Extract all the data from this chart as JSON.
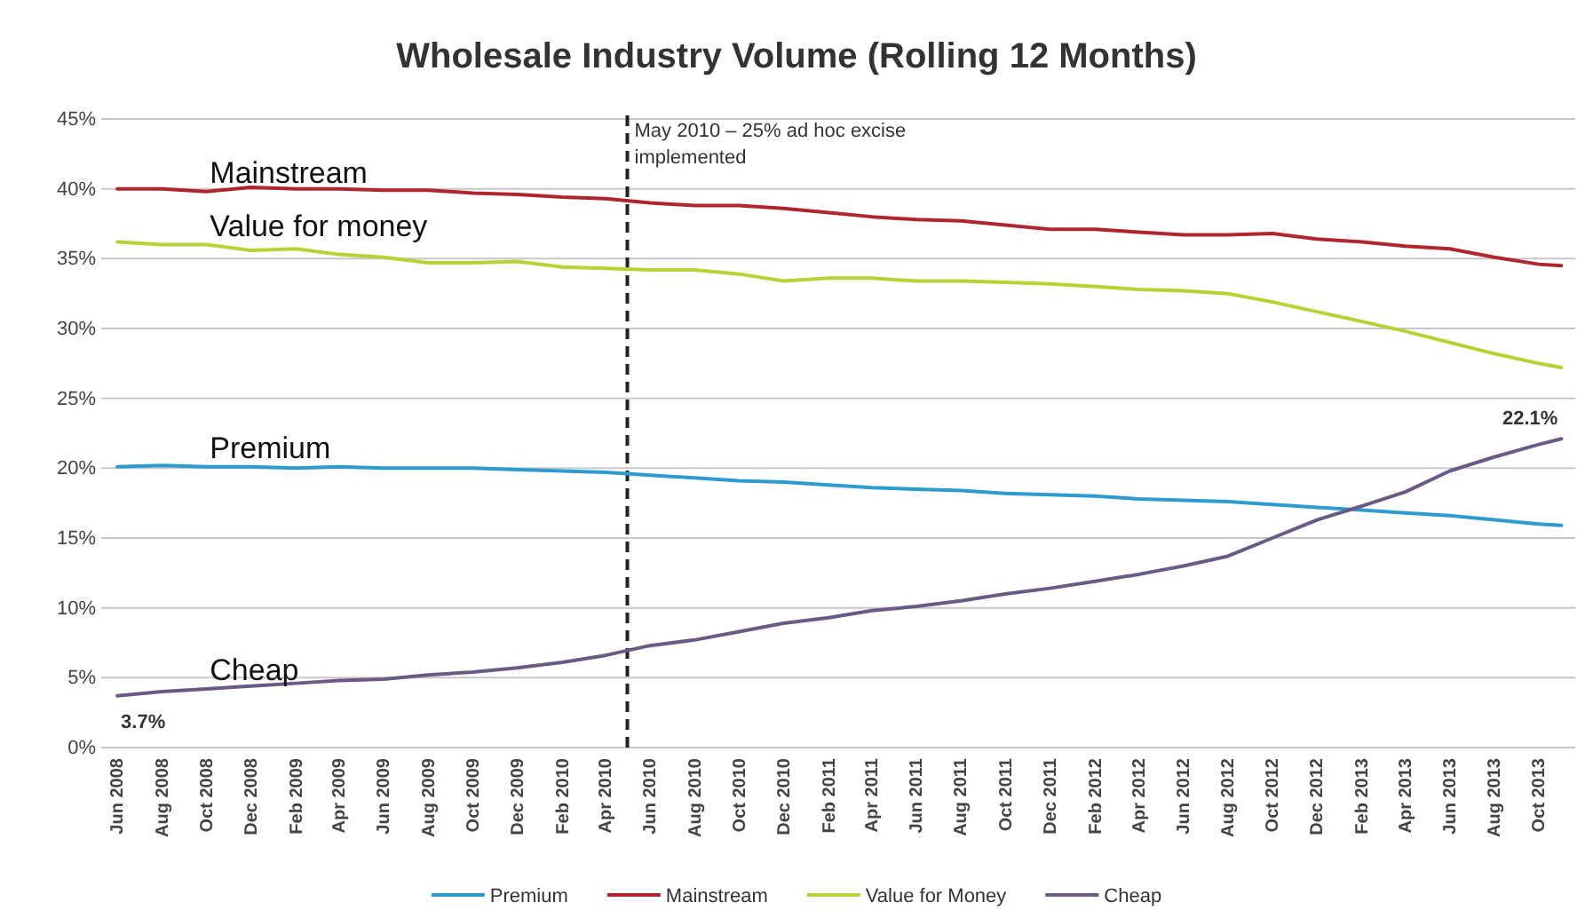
{
  "chart_data": {
    "type": "line",
    "title": "Wholesale Industry Volume (Rolling 12 Months)",
    "x": [
      "2008-06",
      "2008-08",
      "2008-10",
      "2008-12",
      "2009-02",
      "2009-04",
      "2009-06",
      "2009-08",
      "2009-10",
      "2009-12",
      "2010-02",
      "2010-04",
      "2010-06",
      "2010-08",
      "2010-10",
      "2010-12",
      "2011-02",
      "2011-04",
      "2011-06",
      "2011-08",
      "2011-10",
      "2011-12",
      "2012-02",
      "2012-04",
      "2012-06",
      "2012-08",
      "2012-10",
      "2012-12",
      "2013-02",
      "2013-04",
      "2013-06",
      "2013-08",
      "2013-10",
      "2013-11"
    ],
    "series": [
      {
        "name": "Premium",
        "color": "#2e9bd0",
        "values": [
          20.1,
          20.2,
          20.1,
          20.1,
          20.0,
          20.1,
          20.0,
          20.0,
          20.0,
          19.9,
          19.8,
          19.7,
          19.5,
          19.3,
          19.1,
          19.0,
          18.8,
          18.6,
          18.5,
          18.4,
          18.2,
          18.1,
          18.0,
          17.8,
          17.7,
          17.6,
          17.4,
          17.2,
          17.0,
          16.8,
          16.6,
          16.3,
          16.0,
          15.9
        ]
      },
      {
        "name": "Mainstream",
        "color": "#b0262e",
        "values": [
          40.0,
          40.0,
          39.8,
          40.1,
          40.0,
          40.0,
          39.9,
          39.9,
          39.7,
          39.6,
          39.4,
          39.3,
          39.0,
          38.8,
          38.8,
          38.6,
          38.3,
          38.0,
          37.8,
          37.7,
          37.4,
          37.1,
          37.1,
          36.9,
          36.7,
          36.7,
          36.8,
          36.4,
          36.2,
          35.9,
          35.7,
          35.1,
          34.6,
          34.5
        ]
      },
      {
        "name": "Value for Money",
        "color": "#b5d334",
        "values": [
          36.2,
          36.0,
          36.0,
          35.6,
          35.7,
          35.3,
          35.1,
          34.7,
          34.7,
          34.8,
          34.4,
          34.3,
          34.2,
          34.2,
          33.9,
          33.4,
          33.6,
          33.6,
          33.4,
          33.4,
          33.3,
          33.2,
          33.0,
          32.8,
          32.7,
          32.5,
          31.9,
          31.2,
          30.5,
          29.8,
          29.0,
          28.2,
          27.5,
          27.2
        ]
      },
      {
        "name": "Cheap",
        "color": "#6b5a86",
        "values": [
          3.7,
          4.0,
          4.2,
          4.4,
          4.6,
          4.8,
          4.9,
          5.2,
          5.4,
          5.7,
          6.1,
          6.6,
          7.3,
          7.7,
          8.3,
          8.9,
          9.3,
          9.8,
          10.1,
          10.5,
          11.0,
          11.4,
          11.9,
          12.4,
          13.0,
          13.7,
          15.0,
          16.3,
          17.3,
          18.3,
          19.8,
          20.8,
          21.7,
          22.1
        ],
        "value_labels": [
          "3.7%",
          null,
          null,
          null,
          null,
          null,
          null,
          null,
          null,
          null,
          null,
          null,
          null,
          null,
          null,
          null,
          null,
          null,
          null,
          null,
          null,
          null,
          null,
          null,
          null,
          null,
          null,
          null,
          null,
          null,
          null,
          null,
          null,
          "22.1%"
        ]
      }
    ],
    "xlim": [
      "2008-05-10",
      "2013-11-20"
    ],
    "xticks": [
      {
        "value": "2008-06",
        "label": "Jun 2008"
      },
      {
        "value": "2008-08",
        "label": "Aug 2008"
      },
      {
        "value": "2008-10",
        "label": "Oct 2008"
      },
      {
        "value": "2008-12",
        "label": "Dec 2008"
      },
      {
        "value": "2009-02",
        "label": "Feb 2009"
      },
      {
        "value": "2009-04",
        "label": "Apr 2009"
      },
      {
        "value": "2009-06",
        "label": "Jun 2009"
      },
      {
        "value": "2009-08",
        "label": "Aug 2009"
      },
      {
        "value": "2009-10",
        "label": "Oct 2009"
      },
      {
        "value": "2009-12",
        "label": "Dec 2009"
      },
      {
        "value": "2010-02",
        "label": "Feb 2010"
      },
      {
        "value": "2010-04",
        "label": "Apr 2010"
      },
      {
        "value": "2010-06",
        "label": "Jun 2010"
      },
      {
        "value": "2010-08",
        "label": "Aug 2010"
      },
      {
        "value": "2010-10",
        "label": "Oct 2010"
      },
      {
        "value": "2010-12",
        "label": "Dec 2010"
      },
      {
        "value": "2011-02",
        "label": "Feb 2011"
      },
      {
        "value": "2011-04",
        "label": "Apr 2011"
      },
      {
        "value": "2011-06",
        "label": "Jun 2011"
      },
      {
        "value": "2011-08",
        "label": "Aug 2011"
      },
      {
        "value": "2011-10",
        "label": "Oct 2011"
      },
      {
        "value": "2011-12",
        "label": "Dec 2011"
      },
      {
        "value": "2012-02",
        "label": "Feb 2012"
      },
      {
        "value": "2012-04",
        "label": "Apr 2012"
      },
      {
        "value": "2012-06",
        "label": "Jun 2012"
      },
      {
        "value": "2012-08",
        "label": "Aug 2012"
      },
      {
        "value": "2012-10",
        "label": "Oct 2012"
      },
      {
        "value": "2012-12",
        "label": "Dec 2012"
      },
      {
        "value": "2013-02",
        "label": "Feb 2013"
      },
      {
        "value": "2013-04",
        "label": "Apr 2013"
      },
      {
        "value": "2013-06",
        "label": "Jun 2013"
      },
      {
        "value": "2013-08",
        "label": "Aug 2013"
      },
      {
        "value": "2013-10",
        "label": "Oct 2013"
      }
    ],
    "ylim": [
      0,
      45
    ],
    "yticks": [
      {
        "value": 0,
        "label": "0%"
      },
      {
        "value": 5,
        "label": "5%"
      },
      {
        "value": 10,
        "label": "10%"
      },
      {
        "value": 15,
        "label": "15%"
      },
      {
        "value": 20,
        "label": "20%"
      },
      {
        "value": 25,
        "label": "25%"
      },
      {
        "value": 30,
        "label": "30%"
      },
      {
        "value": 35,
        "label": "35%"
      },
      {
        "value": 40,
        "label": "40%"
      },
      {
        "value": 45,
        "label": "45%"
      }
    ],
    "grid": "y",
    "legend": "bottom",
    "ref_lines": [
      {
        "axis": "x",
        "value": "2010-05",
        "label": "May 2010 – 25% ad hoc excise implemented",
        "color": "#222222",
        "line_style": "dashed"
      }
    ],
    "annotations": [
      "Premium",
      "Mainstream",
      "Value for money",
      "Cheap"
    ]
  }
}
